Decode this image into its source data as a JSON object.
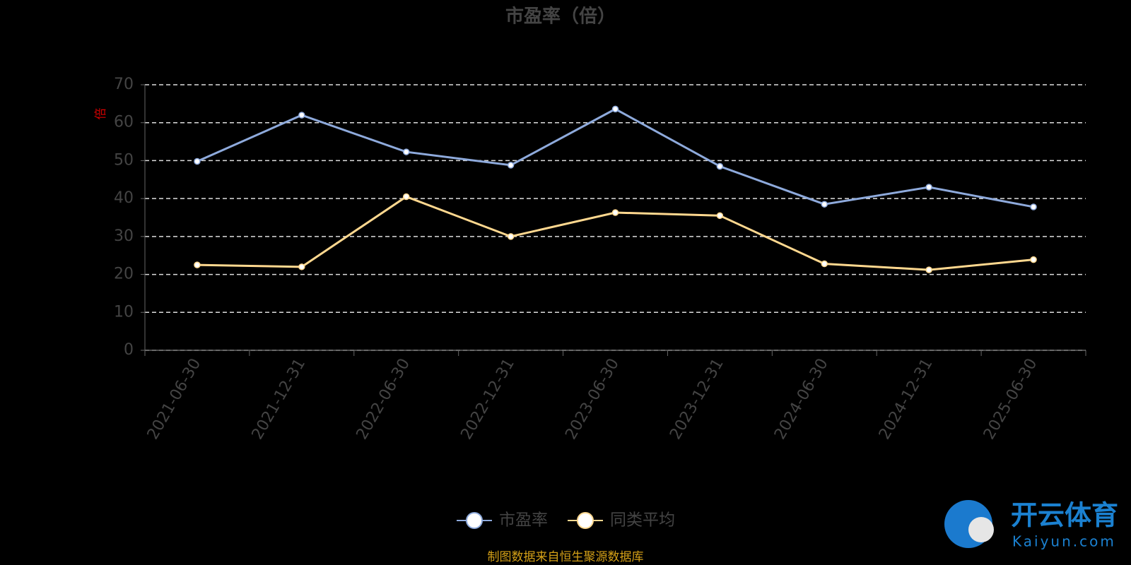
{
  "chart_data": {
    "type": "line",
    "title": "市盈率（倍）",
    "y_label": "倍",
    "categories": [
      "2021-06-30",
      "2021-12-31",
      "2022-06-30",
      "2022-12-31",
      "2023-06-30",
      "2023-12-31",
      "2024-06-30",
      "2024-12-31",
      "2025-06-30"
    ],
    "series": [
      {
        "name": "市盈率",
        "color": "#8eaadc",
        "values": [
          49.8,
          62,
          52.3,
          48.8,
          63.6,
          48.5,
          38.5,
          43,
          37.8
        ]
      },
      {
        "name": "同类平均",
        "color": "#ffd88f",
        "values": [
          22.5,
          22,
          40.5,
          30,
          36.3,
          35.5,
          22.8,
          21.2,
          23.9
        ]
      }
    ],
    "ylim": [
      0,
      70
    ],
    "yticks": [
      0,
      10,
      20,
      30,
      40,
      50,
      60,
      70
    ],
    "grid": true,
    "source": "制图数据来自恒生聚源数据库",
    "watermark": {
      "brand": "开云体育",
      "site": "Kaiyun.com"
    }
  }
}
